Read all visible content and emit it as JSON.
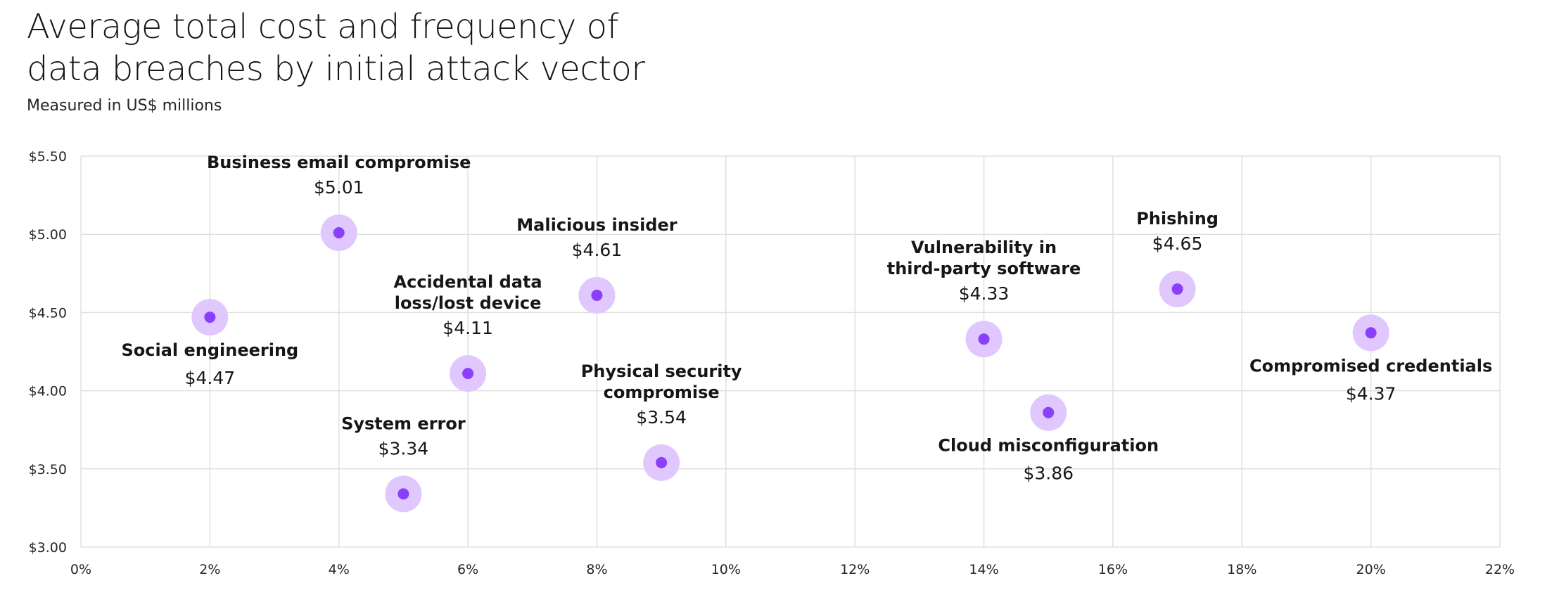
{
  "chart_data": {
    "type": "scatter",
    "title_lines": [
      "Average total cost and frequency of",
      "data breaches by initial attack vector"
    ],
    "subtitle": "Measured in US$ millions",
    "x_ticks": [
      "0%",
      "2%",
      "4%",
      "6%",
      "8%",
      "10%",
      "12%",
      "14%",
      "16%",
      "18%",
      "20%",
      "22%"
    ],
    "y_ticks": [
      "$5.50",
      "$5.00",
      "$4.50",
      "$4.00",
      "$3.50",
      "$3.00"
    ],
    "xlim": [
      0,
      22
    ],
    "ylim": [
      3.0,
      5.5
    ],
    "grid": true,
    "colors": {
      "point": "#8a3ffc",
      "halo": "#e0c8ff",
      "grid": "#e0e0e0"
    },
    "points": [
      {
        "label_lines": [
          "Social engineering"
        ],
        "value_label": "$4.47",
        "x": 2,
        "y": 4.47,
        "label_pos": "below"
      },
      {
        "label_lines": [
          "Business email compromise"
        ],
        "value_label": "$5.01",
        "x": 4,
        "y": 5.01,
        "label_pos": "above"
      },
      {
        "label_lines": [
          "System error"
        ],
        "value_label": "$3.34",
        "x": 5,
        "y": 3.34,
        "label_pos": "above"
      },
      {
        "label_lines": [
          "Accidental data",
          "loss/lost device"
        ],
        "value_label": "$4.11",
        "x": 6,
        "y": 4.11,
        "label_pos": "above"
      },
      {
        "label_lines": [
          "Malicious insider"
        ],
        "value_label": "$4.61",
        "x": 8,
        "y": 4.61,
        "label_pos": "above"
      },
      {
        "label_lines": [
          "Physical  security",
          "compromise"
        ],
        "value_label": "$3.54",
        "x": 9,
        "y": 3.54,
        "label_pos": "above"
      },
      {
        "label_lines": [
          "Vulnerability in",
          "third-party software"
        ],
        "value_label": "$4.33",
        "x": 14,
        "y": 4.33,
        "label_pos": "above"
      },
      {
        "label_lines": [
          "Cloud misconfiguration"
        ],
        "value_label": "$3.86",
        "x": 15,
        "y": 3.86,
        "label_pos": "below"
      },
      {
        "label_lines": [
          "Phishing"
        ],
        "value_label": "$4.65",
        "x": 17,
        "y": 4.65,
        "label_pos": "above"
      },
      {
        "label_lines": [
          "Compromised credentials"
        ],
        "value_label": "$4.37",
        "x": 20,
        "y": 4.37,
        "label_pos": "below"
      }
    ]
  }
}
